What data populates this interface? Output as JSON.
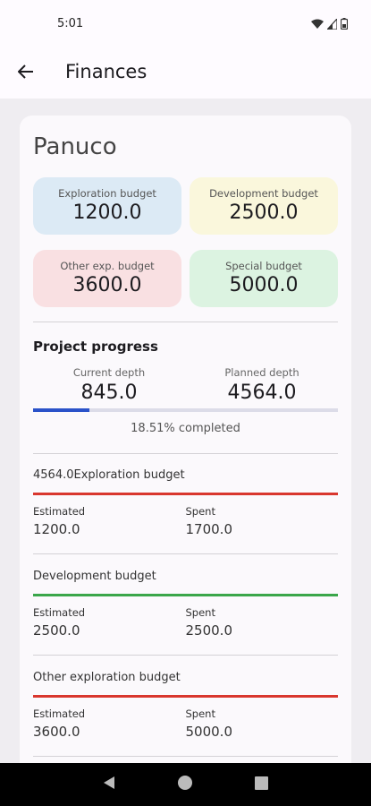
{
  "status": {
    "time": "5:01"
  },
  "app_bar": {
    "title": "Finances"
  },
  "project": {
    "name": "Panuco"
  },
  "budgets": [
    {
      "label": "Exploration budget",
      "value": "1200.0",
      "color": "#dceaf5"
    },
    {
      "label": "Development budget",
      "value": "2500.0",
      "color": "#faf7dc"
    },
    {
      "label": "Other exp. budget",
      "value": "3600.0",
      "color": "#f9e0e2"
    },
    {
      "label": "Special budget",
      "value": "5000.0",
      "color": "#dcf3e1"
    }
  ],
  "progress": {
    "title": "Project progress",
    "current_label": "Current depth",
    "current_value": "845.0",
    "planned_label": "Planned depth",
    "planned_value": "4564.0",
    "percent": 18.51,
    "completed_text": "18.51% completed",
    "bar_color": "#2a52c9"
  },
  "sections": [
    {
      "title": "4564.0Exploration budget",
      "bar_color": "#d9372e",
      "estimated_label": "Estimated",
      "estimated_value": "1200.0",
      "spent_label": "Spent",
      "spent_value": "1700.0"
    },
    {
      "title": "Development budget",
      "bar_color": "#3aa64a",
      "estimated_label": "Estimated",
      "estimated_value": "2500.0",
      "spent_label": "Spent",
      "spent_value": "2500.0"
    },
    {
      "title": "Other exploration budget",
      "bar_color": "#d9372e",
      "estimated_label": "Estimated",
      "estimated_value": "3600.0",
      "spent_label": "Spent",
      "spent_value": "5000.0"
    }
  ]
}
